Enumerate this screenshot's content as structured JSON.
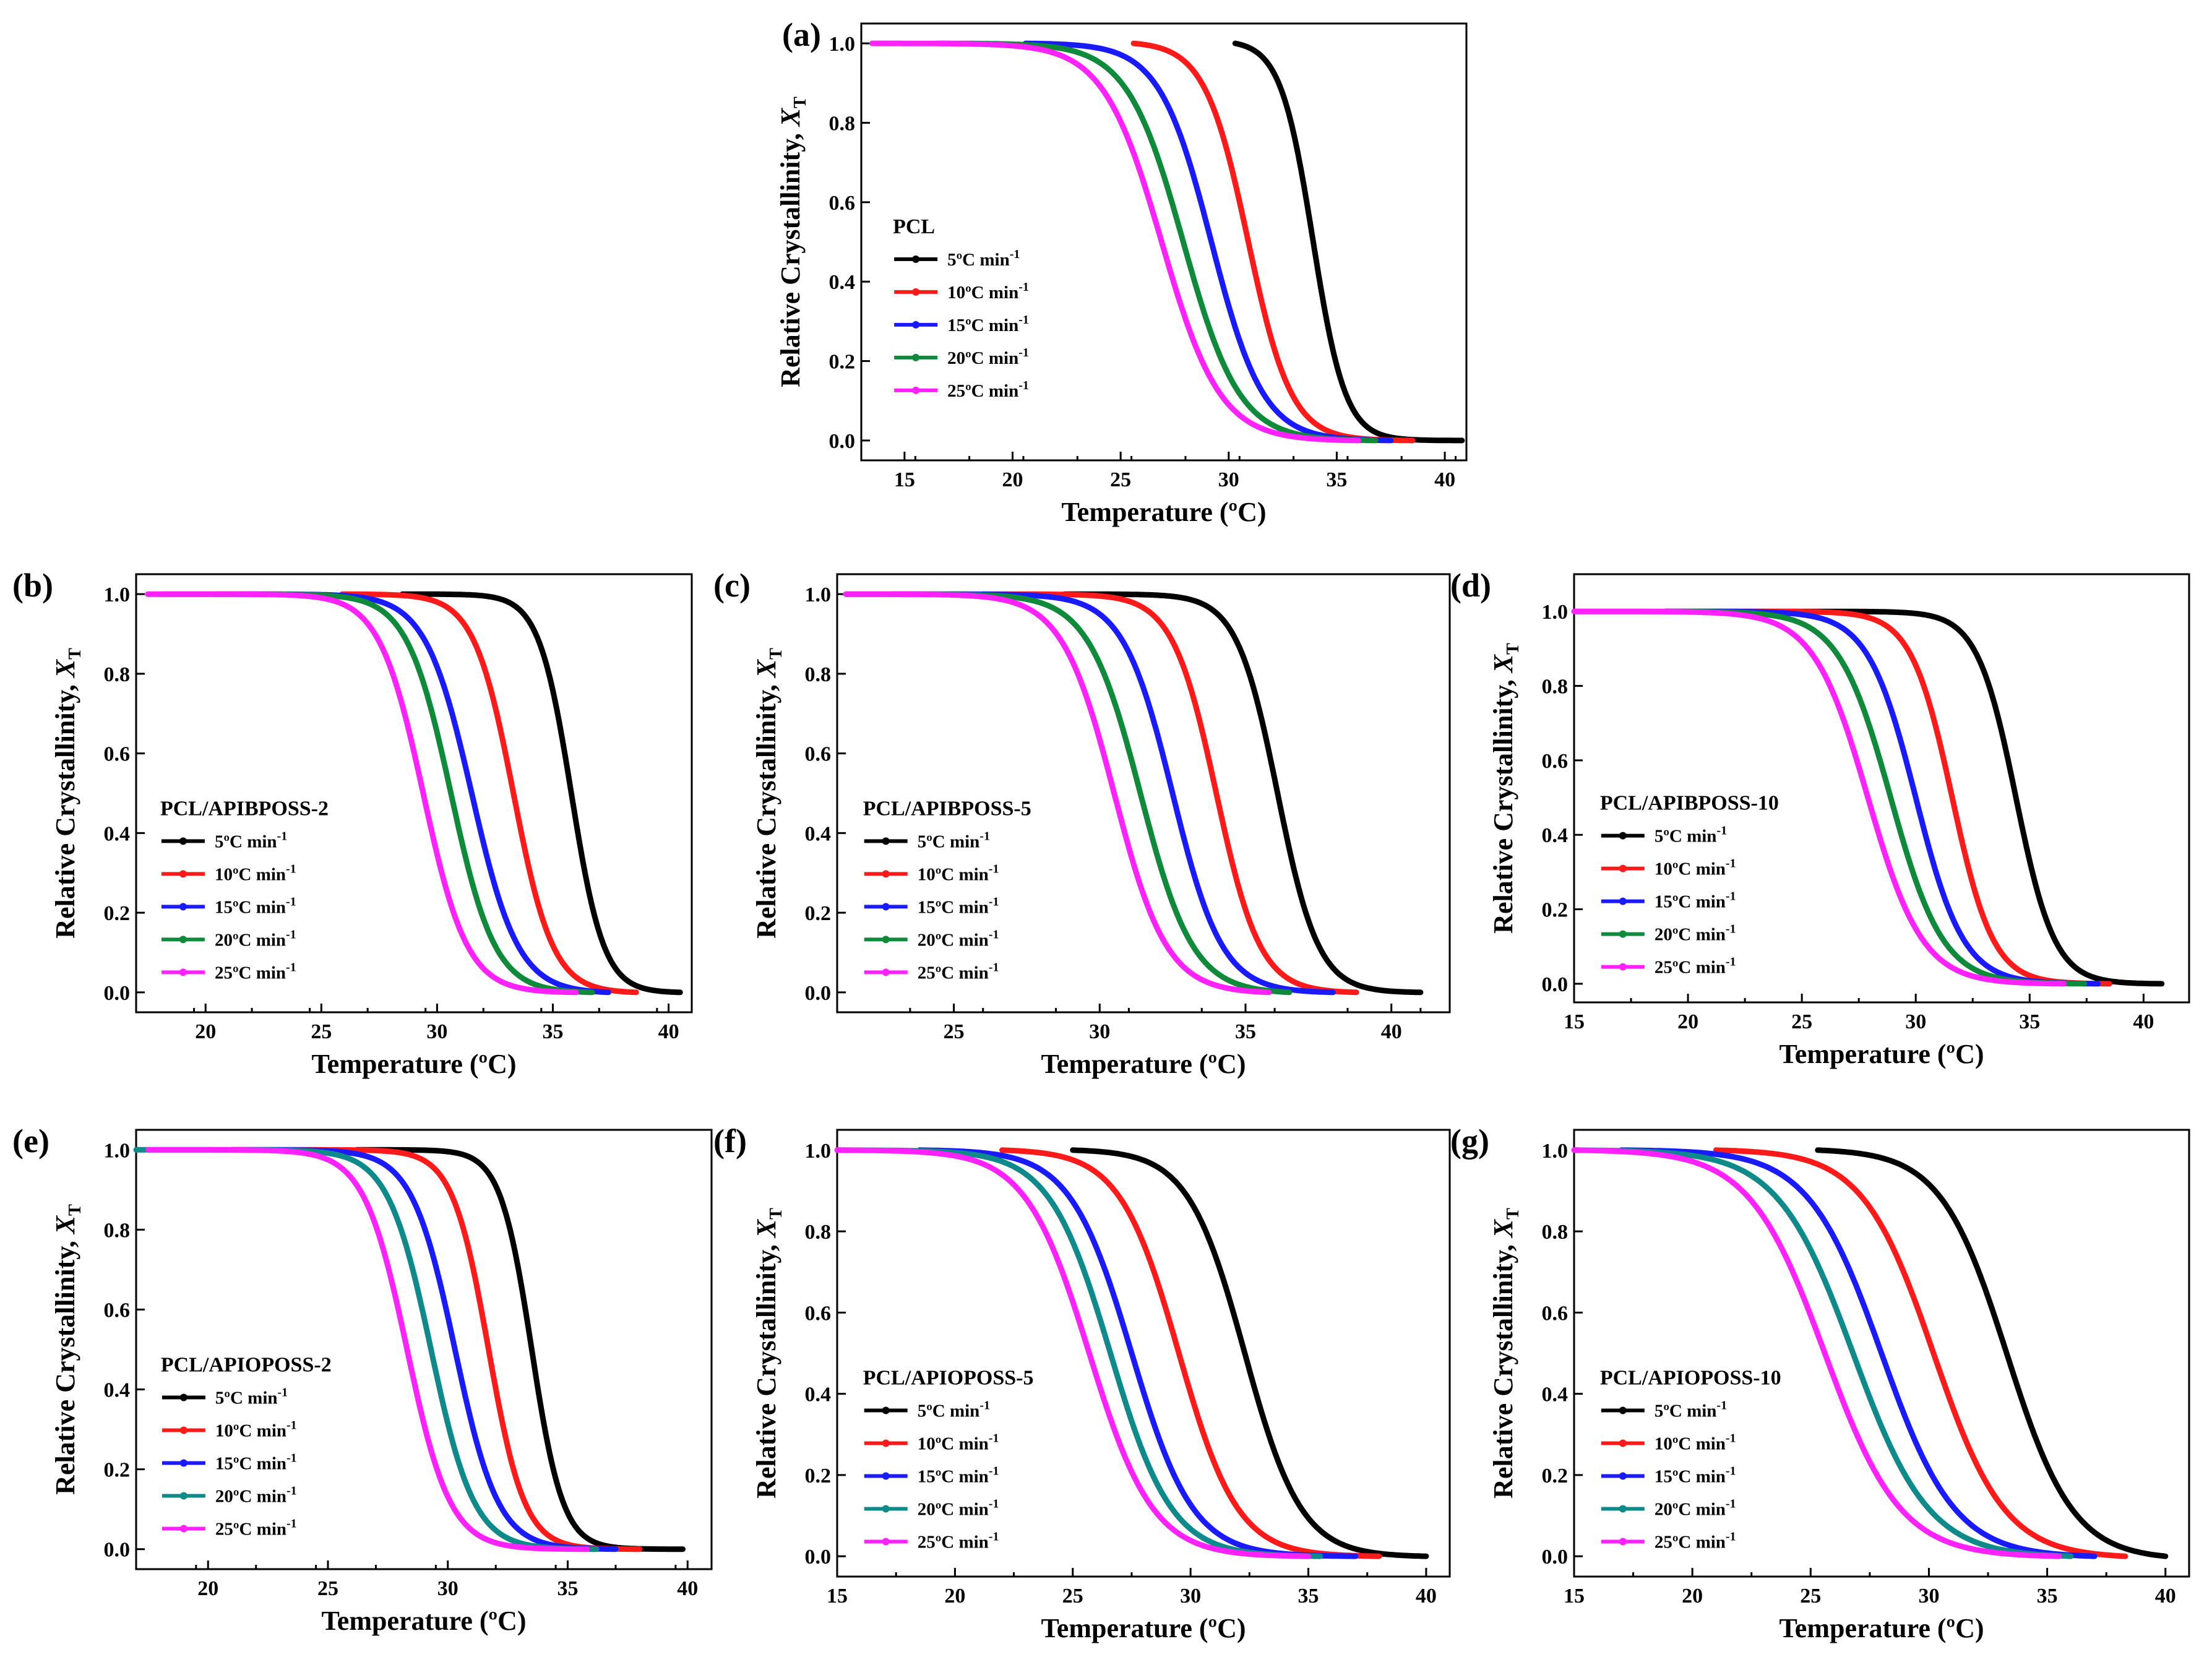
{
  "figure": {
    "ylabel": "Relative Crystallinity, X",
    "ylabel_sub": "T",
    "xlabel": "Temperature (ºC)",
    "legend_unit": "ºC min",
    "legend_exp": "-1"
  },
  "series_colors": [
    "#000000",
    "#ff1a1a",
    "#1a1aff",
    "#0f8a3a",
    "#ff22ff"
  ],
  "series_colors_teal": [
    "#000000",
    "#ff1a1a",
    "#1a1aff",
    "#0f8a8a",
    "#ff22ff"
  ],
  "chart_data": [
    {
      "type": "line",
      "panel": "(a)",
      "sample": "PCL",
      "xlim": [
        13,
        41
      ],
      "ylim": [
        -0.05,
        1.05
      ],
      "xticks": [
        15,
        20,
        25,
        30,
        35,
        40
      ],
      "yticks": [
        0.0,
        0.2,
        0.4,
        0.6,
        0.8,
        1.0
      ],
      "series": [
        {
          "name": "5ºC min-1",
          "start": 30.3,
          "end": 40.8,
          "mid": 33.9,
          "width": 0.75
        },
        {
          "name": "10ºC min-1",
          "start": 25.6,
          "end": 38.5,
          "mid": 30.9,
          "width": 1.0
        },
        {
          "name": "15ºC min-1",
          "start": 20.6,
          "end": 37.5,
          "mid": 29.2,
          "width": 1.2
        },
        {
          "name": "20ºC min-1",
          "start": 16.5,
          "end": 36.8,
          "mid": 27.9,
          "width": 1.3
        },
        {
          "name": "25ºC min-1",
          "start": 13.5,
          "end": 36.0,
          "mid": 26.9,
          "width": 1.35
        }
      ]
    },
    {
      "type": "line",
      "panel": "(b)",
      "sample": "PCL/APIBPOSS-2",
      "xlim": [
        17,
        41
      ],
      "ylim": [
        -0.05,
        1.05
      ],
      "xticks": [
        20,
        25,
        30,
        35,
        40
      ],
      "yticks": [
        0.0,
        0.2,
        0.4,
        0.6,
        0.8,
        1.0
      ],
      "series": [
        {
          "name": "5ºC min-1",
          "start": 28.5,
          "end": 40.5,
          "mid": 35.8,
          "width": 0.7
        },
        {
          "name": "10ºC min-1",
          "start": 25.9,
          "end": 38.6,
          "mid": 33.3,
          "width": 0.85
        },
        {
          "name": "15ºC min-1",
          "start": 20.4,
          "end": 37.4,
          "mid": 31.5,
          "width": 1.0
        },
        {
          "name": "20ºC min-1",
          "start": 18.0,
          "end": 36.7,
          "mid": 30.6,
          "width": 0.95
        },
        {
          "name": "25ºC min-1",
          "start": 17.5,
          "end": 36.0,
          "mid": 29.4,
          "width": 0.95
        }
      ]
    },
    {
      "type": "line",
      "panel": "(c)",
      "sample": "PCL/APIBPOSS-5",
      "xlim": [
        21,
        42
      ],
      "ylim": [
        -0.05,
        1.05
      ],
      "xticks": [
        25,
        30,
        35,
        40
      ],
      "yticks": [
        0.0,
        0.2,
        0.4,
        0.6,
        0.8,
        1.0
      ],
      "series": [
        {
          "name": "5ºC min-1",
          "start": 28.8,
          "end": 41.0,
          "mid": 36.1,
          "width": 0.7
        },
        {
          "name": "10ºC min-1",
          "start": 26.0,
          "end": 38.8,
          "mid": 34.0,
          "width": 0.75
        },
        {
          "name": "15ºC min-1",
          "start": 22.8,
          "end": 38.0,
          "mid": 32.5,
          "width": 0.85
        },
        {
          "name": "20ºC min-1",
          "start": 21.3,
          "end": 36.5,
          "mid": 31.4,
          "width": 0.9
        },
        {
          "name": "25ºC min-1",
          "start": 21.3,
          "end": 35.8,
          "mid": 30.5,
          "width": 0.9
        }
      ]
    },
    {
      "type": "line",
      "panel": "(d)",
      "sample": "PCL/APIBPOSS-10",
      "xlim": [
        15,
        42
      ],
      "ylim": [
        -0.05,
        1.1
      ],
      "xticks": [
        15,
        20,
        25,
        30,
        35,
        40
      ],
      "yticks": [
        0.0,
        0.2,
        0.4,
        0.6,
        0.8,
        1.0
      ],
      "series": [
        {
          "name": "5ºC min-1",
          "start": 19.0,
          "end": 40.8,
          "mid": 34.4,
          "width": 0.85
        },
        {
          "name": "10ºC min-1",
          "start": 21.0,
          "end": 38.5,
          "mid": 31.6,
          "width": 0.9
        },
        {
          "name": "15ºC min-1",
          "start": 19.0,
          "end": 38.0,
          "mid": 30.0,
          "width": 1.05
        },
        {
          "name": "20ºC min-1",
          "start": 15.0,
          "end": 37.4,
          "mid": 28.9,
          "width": 1.15
        },
        {
          "name": "25ºC min-1",
          "start": 15.0,
          "end": 36.5,
          "mid": 27.9,
          "width": 1.2
        }
      ]
    },
    {
      "type": "line",
      "panel": "(e)",
      "sample": "PCL/APIOPOSS-2",
      "xlim": [
        17,
        41
      ],
      "ylim": [
        -0.05,
        1.05
      ],
      "xticks": [
        20,
        25,
        30,
        35,
        40
      ],
      "yticks": [
        0.0,
        0.2,
        0.4,
        0.6,
        0.8,
        1.0
      ],
      "series": [
        {
          "name": "5ºC min-1",
          "start": 26.2,
          "end": 39.8,
          "mid": 33.5,
          "width": 0.65
        },
        {
          "name": "10ºC min-1",
          "start": 21.0,
          "end": 38.0,
          "mid": 31.7,
          "width": 0.75
        },
        {
          "name": "15ºC min-1",
          "start": 21.0,
          "end": 37.0,
          "mid": 30.3,
          "width": 0.9
        },
        {
          "name": "20ºC min-1",
          "start": 17.0,
          "end": 36.2,
          "mid": 29.3,
          "width": 0.9
        },
        {
          "name": "25ºC min-1",
          "start": 17.5,
          "end": 35.8,
          "mid": 28.3,
          "width": 0.9
        }
      ]
    },
    {
      "type": "line",
      "panel": "(f)",
      "sample": "PCL/APIOPOSS-5",
      "xlim": [
        15,
        41
      ],
      "ylim": [
        -0.05,
        1.05
      ],
      "xticks": [
        15,
        20,
        25,
        30,
        35,
        40
      ],
      "yticks": [
        0.0,
        0.2,
        0.4,
        0.6,
        0.8,
        1.0
      ],
      "series": [
        {
          "name": "5ºC min-1",
          "start": 25.0,
          "end": 40.0,
          "mid": 32.3,
          "width": 1.2
        },
        {
          "name": "10ºC min-1",
          "start": 22.0,
          "end": 38.0,
          "mid": 29.5,
          "width": 1.25
        },
        {
          "name": "15ºC min-1",
          "start": 18.5,
          "end": 37.0,
          "mid": 27.5,
          "width": 1.3
        },
        {
          "name": "20ºC min-1",
          "start": 15.0,
          "end": 35.5,
          "mid": 26.6,
          "width": 1.3
        },
        {
          "name": "25ºC min-1",
          "start": 15.0,
          "end": 35.0,
          "mid": 25.7,
          "width": 1.35
        }
      ]
    },
    {
      "type": "line",
      "panel": "(g)",
      "sample": "PCL/APIOPOSS-10",
      "xlim": [
        15,
        41
      ],
      "ylim": [
        -0.05,
        1.05
      ],
      "xticks": [
        15,
        20,
        25,
        30,
        35,
        40
      ],
      "yticks": [
        0.0,
        0.2,
        0.4,
        0.6,
        0.8,
        1.0
      ],
      "series": [
        {
          "name": "5ºC min-1",
          "start": 25.3,
          "end": 40.0,
          "mid": 33.3,
          "width": 1.4
        },
        {
          "name": "10ºC min-1",
          "start": 21.0,
          "end": 38.3,
          "mid": 30.2,
          "width": 1.5
        },
        {
          "name": "15ºC min-1",
          "start": 17.0,
          "end": 37.0,
          "mid": 28.0,
          "width": 1.55
        },
        {
          "name": "20ºC min-1",
          "start": 15.0,
          "end": 36.0,
          "mid": 26.8,
          "width": 1.6
        },
        {
          "name": "25ºC min-1",
          "start": 15.0,
          "end": 35.5,
          "mid": 25.6,
          "width": 1.6
        }
      ]
    }
  ]
}
